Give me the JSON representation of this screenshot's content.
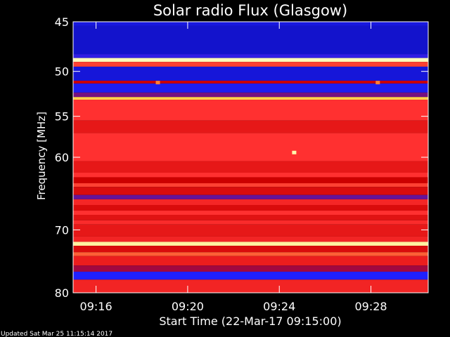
{
  "title": "Solar radio Flux (Glasgow)",
  "footer": "Updated Sat Mar 25 11:15:14 2017",
  "chart_data": {
    "type": "heatmap",
    "title": "Solar radio Flux (Glasgow)",
    "xlabel": "Start Time (22-Mar-17 09:15:00)",
    "ylabel": "Frequency [MHz]",
    "x_range_minutes": [
      0,
      15.5
    ],
    "ylim": [
      45,
      80
    ],
    "y_scale": "log",
    "y_inverted": true,
    "x_ticks": [
      {
        "minute": 1,
        "label": "09:16"
      },
      {
        "minute": 5,
        "label": "09:20"
      },
      {
        "minute": 9,
        "label": "09:24"
      },
      {
        "minute": 13,
        "label": "09:28"
      }
    ],
    "y_ticks": [
      {
        "value": 45,
        "label": "45"
      },
      {
        "value": 50,
        "label": "50"
      },
      {
        "value": 55,
        "label": "55"
      },
      {
        "value": 60,
        "label": "60"
      },
      {
        "value": 70,
        "label": "70"
      },
      {
        "value": 80,
        "label": "80"
      }
    ],
    "colormap": [
      "#000080",
      "#2020ff",
      "#cc0000",
      "#ff3030",
      "#ffcc40",
      "#ffffc0"
    ],
    "bands": [
      {
        "from": 45.0,
        "to": 45.4,
        "level": 0.15
      },
      {
        "from": 45.4,
        "to": 48.2,
        "level": 0.12
      },
      {
        "from": 48.2,
        "to": 48.6,
        "level": 0.22
      },
      {
        "from": 48.6,
        "to": 49.0,
        "level": 0.99
      },
      {
        "from": 49.0,
        "to": 49.5,
        "level": 0.62
      },
      {
        "from": 49.5,
        "to": 51.0,
        "level": 0.14
      },
      {
        "from": 51.0,
        "to": 51.3,
        "level": 0.4
      },
      {
        "from": 51.3,
        "to": 52.3,
        "level": 0.18
      },
      {
        "from": 52.3,
        "to": 52.8,
        "level": 0.3
      },
      {
        "from": 52.8,
        "to": 53.1,
        "level": 0.82
      },
      {
        "from": 53.1,
        "to": 55.5,
        "level": 0.6
      },
      {
        "from": 55.5,
        "to": 57.0,
        "level": 0.5
      },
      {
        "from": 57.0,
        "to": 60.5,
        "level": 0.6
      },
      {
        "from": 60.5,
        "to": 62.0,
        "level": 0.5
      },
      {
        "from": 62.0,
        "to": 62.6,
        "level": 0.6
      },
      {
        "from": 62.6,
        "to": 63.4,
        "level": 0.4
      },
      {
        "from": 63.4,
        "to": 63.9,
        "level": 0.62
      },
      {
        "from": 63.9,
        "to": 65.0,
        "level": 0.45
      },
      {
        "from": 65.0,
        "to": 65.6,
        "level": 0.28
      },
      {
        "from": 65.6,
        "to": 66.4,
        "level": 0.56
      },
      {
        "from": 66.4,
        "to": 67.2,
        "level": 0.45
      },
      {
        "from": 67.2,
        "to": 67.8,
        "level": 0.6
      },
      {
        "from": 67.8,
        "to": 68.6,
        "level": 0.48
      },
      {
        "from": 68.6,
        "to": 69.2,
        "level": 0.58
      },
      {
        "from": 69.2,
        "to": 71.0,
        "level": 0.5
      },
      {
        "from": 71.0,
        "to": 71.8,
        "level": 0.55
      },
      {
        "from": 71.8,
        "to": 72.4,
        "level": 0.95
      },
      {
        "from": 72.4,
        "to": 73.4,
        "level": 0.45
      },
      {
        "from": 73.4,
        "to": 74.0,
        "level": 0.66
      },
      {
        "from": 74.0,
        "to": 75.5,
        "level": 0.52
      },
      {
        "from": 75.5,
        "to": 76.5,
        "level": 0.35
      },
      {
        "from": 76.5,
        "to": 77.8,
        "level": 0.2
      },
      {
        "from": 77.8,
        "to": 80.0,
        "level": 0.55
      }
    ],
    "features": [
      {
        "minute": 3.7,
        "freq": 51.2,
        "level": 0.7
      },
      {
        "minute": 13.3,
        "freq": 51.2,
        "level": 0.7
      },
      {
        "minute": 9.65,
        "freq": 59.4,
        "level": 0.97
      }
    ]
  }
}
